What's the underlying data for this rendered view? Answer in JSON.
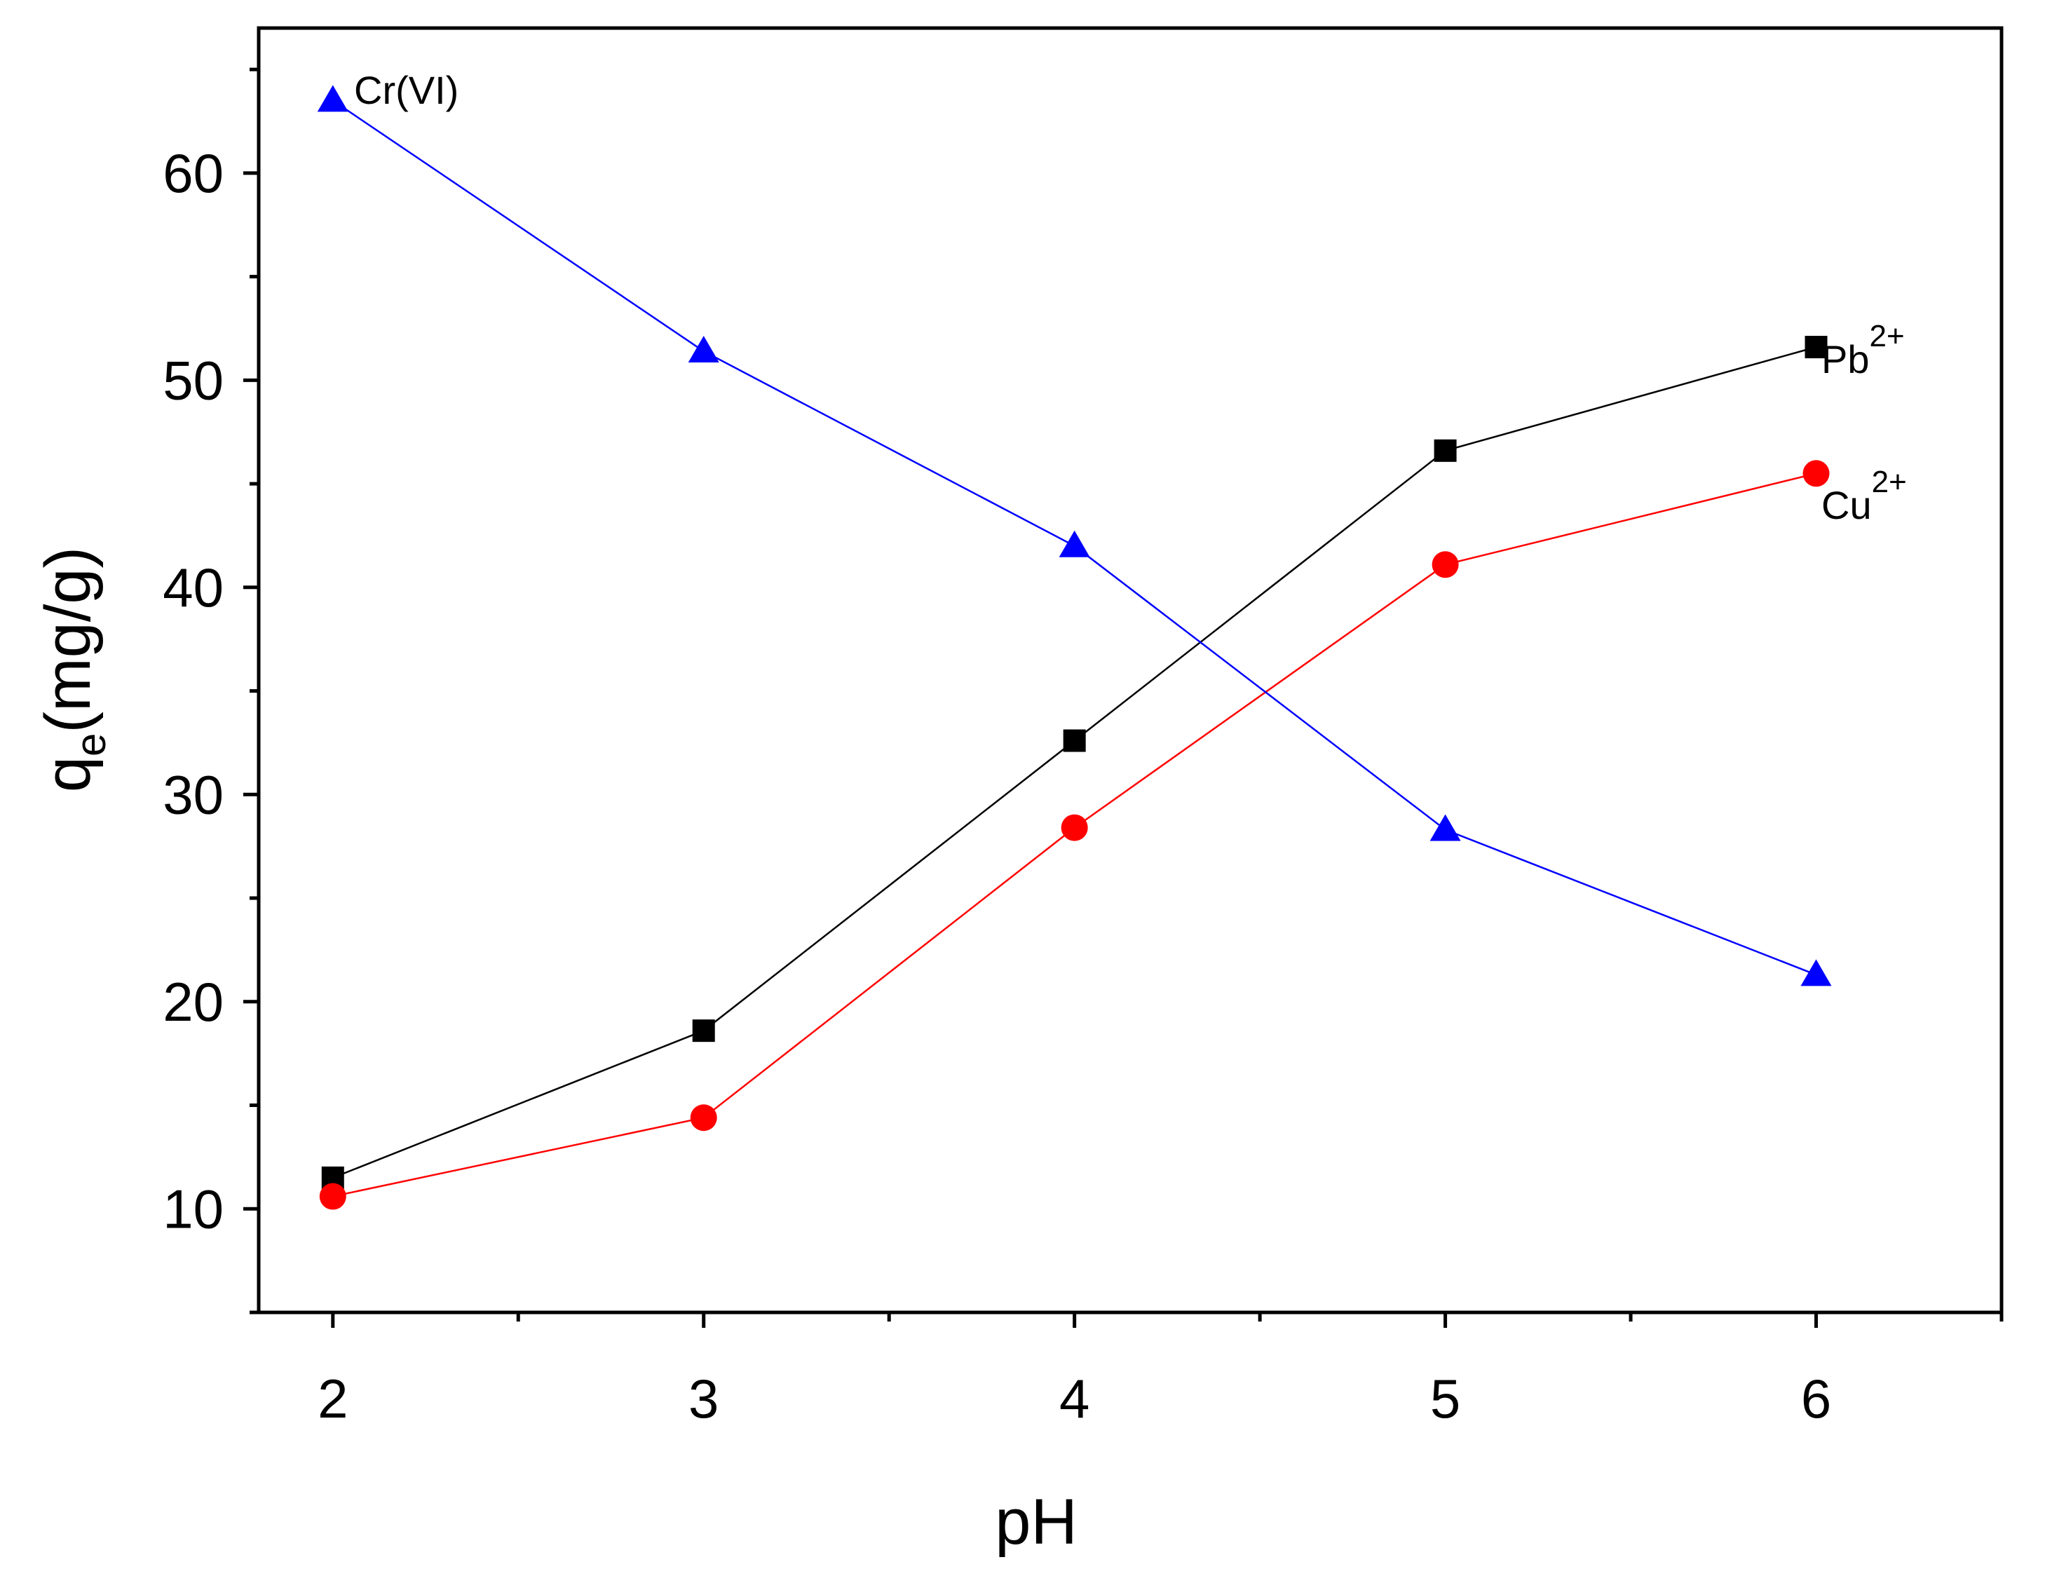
{
  "chart_data": {
    "type": "line",
    "title": "",
    "xlabel": "pH",
    "ylabel": {
      "main": "q",
      "sub": "e",
      "rest": "(mg/g)"
    },
    "xlim": [
      1.8,
      6.5
    ],
    "ylim": [
      5,
      67
    ],
    "x_ticks": [
      2,
      3,
      4,
      5,
      6
    ],
    "x_tick_labels": [
      "2",
      "3",
      "4",
      "5",
      "6"
    ],
    "y_ticks": [
      10,
      20,
      30,
      40,
      50,
      60
    ],
    "y_tick_labels": [
      "10",
      "20",
      "30",
      "40",
      "50",
      "60"
    ],
    "grid": false,
    "legend": "none",
    "x": [
      2,
      3,
      4,
      5,
      6
    ],
    "series": [
      {
        "id": "pb",
        "label_main": "Pb",
        "label_sup": "2+",
        "marker": "square",
        "color": "#000000",
        "values": [
          11.5,
          18.6,
          32.6,
          46.6,
          51.6
        ]
      },
      {
        "id": "cu",
        "label_main": "Cu",
        "label_sup": "2+",
        "marker": "circle",
        "color": "#ff0000",
        "values": [
          10.6,
          14.4,
          28.4,
          41.1,
          45.5
        ]
      },
      {
        "id": "cr",
        "label_main": "Cr(VI)",
        "label_sup": "",
        "marker": "triangle",
        "color": "#0000ff",
        "values": [
          63.5,
          51.4,
          42.0,
          28.3,
          21.3
        ]
      }
    ]
  }
}
